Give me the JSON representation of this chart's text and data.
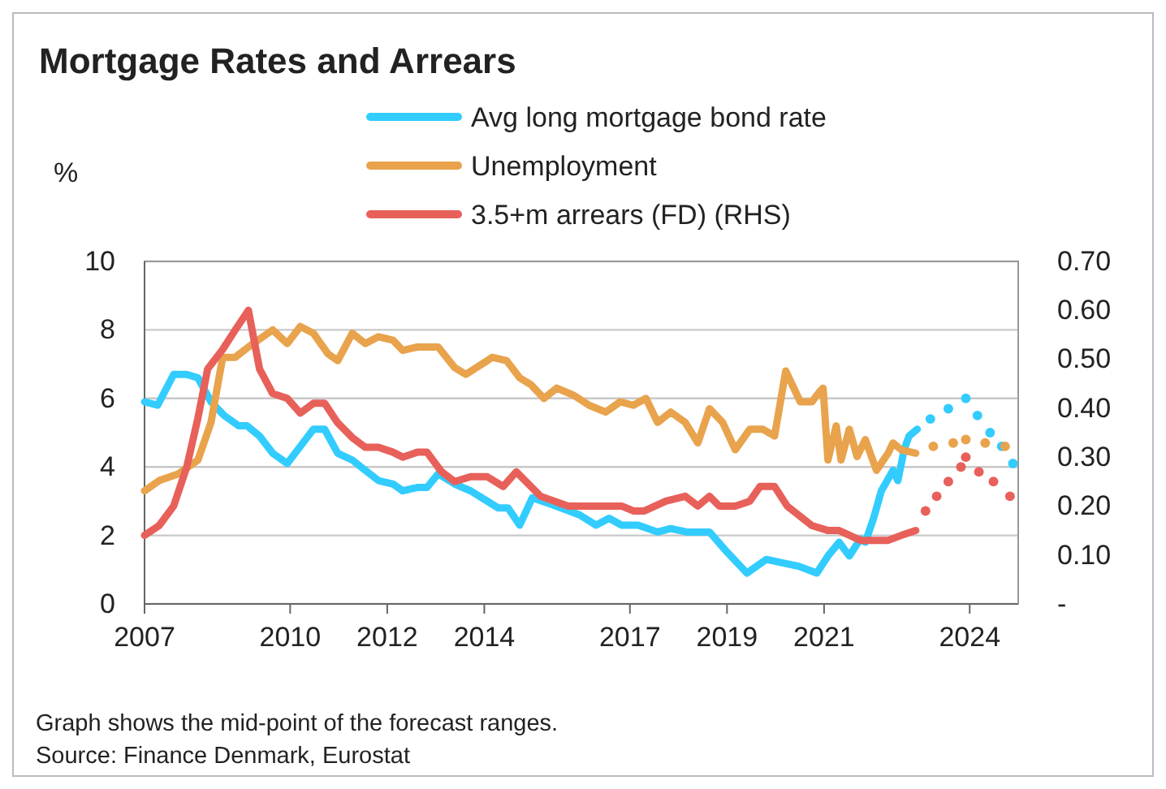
{
  "chart_data": {
    "type": "line",
    "title": "Mortgage Rates and Arrears",
    "ylabel": "%",
    "xlim": [
      2007,
      2025
    ],
    "xticks": [
      2007,
      2010,
      2012,
      2014,
      2017,
      2019,
      2021,
      2024
    ],
    "ylim": [
      0,
      10
    ],
    "yticks": [
      0,
      2,
      4,
      6,
      8,
      10
    ],
    "y2lim": [
      0,
      0.7
    ],
    "y2ticks": [
      {
        "value": 0,
        "label": "-"
      },
      {
        "value": 0.1,
        "label": "0.10"
      },
      {
        "value": 0.2,
        "label": "0.20"
      },
      {
        "value": 0.3,
        "label": "0.30"
      },
      {
        "value": 0.4,
        "label": "0.40"
      },
      {
        "value": 0.5,
        "label": "0.50"
      },
      {
        "value": 0.6,
        "label": "0.60"
      },
      {
        "value": 0.7,
        "label": "0.70"
      }
    ],
    "grid": "y",
    "legend": "top",
    "series": [
      {
        "name": "Avg long mortgage bond rate",
        "color": "#33ccff",
        "line_style": "solid",
        "x": [
          2007.0,
          2007.27,
          2007.6,
          2007.87,
          2008.1,
          2008.37,
          2008.64,
          2008.94,
          2009.11,
          2009.37,
          2009.64,
          2009.94,
          2010.21,
          2010.48,
          2010.71,
          2010.98,
          2011.28,
          2011.55,
          2011.82,
          2012.12,
          2012.32,
          2012.62,
          2012.82,
          2013.05,
          2013.39,
          2013.72,
          2014.06,
          2014.29,
          2014.49,
          2014.73,
          2014.99,
          2015.39,
          2015.96,
          2016.3,
          2016.57,
          2016.83,
          2017.17,
          2017.57,
          2017.84,
          2018.17,
          2018.64,
          2019.01,
          2019.41,
          2019.81,
          2020.14,
          2020.48,
          2020.85,
          2021.08,
          2021.31,
          2021.52,
          2021.75,
          2021.85,
          2022.02,
          2022.18,
          2022.42,
          2022.52,
          2022.65,
          2022.75,
          2022.92
        ],
        "values": [
          5.9,
          5.8,
          6.7,
          6.7,
          6.6,
          5.9,
          5.5,
          5.2,
          5.2,
          4.9,
          4.4,
          4.1,
          4.6,
          5.1,
          5.1,
          4.4,
          4.2,
          3.9,
          3.6,
          3.5,
          3.3,
          3.4,
          3.4,
          3.8,
          3.5,
          3.3,
          3.0,
          2.8,
          2.8,
          2.3,
          3.1,
          2.9,
          2.6,
          2.3,
          2.5,
          2.3,
          2.3,
          2.1,
          2.2,
          2.1,
          2.1,
          1.5,
          0.9,
          1.3,
          1.2,
          1.1,
          0.9,
          1.4,
          1.8,
          1.4,
          1.9,
          1.8,
          2.5,
          3.3,
          3.9,
          3.6,
          4.5,
          4.9,
          5.1
        ]
      },
      {
        "color": "#33ccff",
        "type": "scatter",
        "marker": "circle",
        "x": [
          2023.19,
          2023.56,
          2023.92,
          2024.16,
          2024.42,
          2024.66,
          2024.89
        ],
        "values": [
          5.4,
          5.7,
          6.0,
          5.5,
          5.0,
          4.6,
          4.1
        ]
      },
      {
        "name": "Unemployment",
        "color": "#e8a34c",
        "line_style": "solid",
        "x": [
          2007.0,
          2007.3,
          2007.7,
          2008.1,
          2008.37,
          2008.61,
          2008.87,
          2009.14,
          2009.44,
          2009.64,
          2009.94,
          2010.21,
          2010.48,
          2010.78,
          2010.98,
          2011.28,
          2011.55,
          2011.82,
          2012.12,
          2012.32,
          2012.62,
          2013.05,
          2013.39,
          2013.62,
          2014.06,
          2014.16,
          2014.46,
          2014.73,
          2014.96,
          2015.23,
          2015.49,
          2015.83,
          2016.16,
          2016.5,
          2016.8,
          2017.07,
          2017.33,
          2017.57,
          2017.84,
          2018.14,
          2018.4,
          2018.64,
          2018.91,
          2019.17,
          2019.47,
          2019.74,
          2019.98,
          2020.21,
          2020.51,
          2020.75,
          2020.91,
          2020.98,
          2021.08,
          2021.25,
          2021.35,
          2021.52,
          2021.68,
          2021.85,
          2022.08,
          2022.32,
          2022.42,
          2022.59,
          2022.89
        ],
        "values": [
          3.3,
          3.6,
          3.8,
          4.2,
          5.3,
          7.2,
          7.2,
          7.5,
          7.8,
          8.0,
          7.6,
          8.1,
          7.9,
          7.3,
          7.1,
          7.9,
          7.6,
          7.8,
          7.7,
          7.4,
          7.5,
          7.5,
          6.9,
          6.7,
          7.1,
          7.2,
          7.1,
          6.6,
          6.4,
          6.0,
          6.3,
          6.1,
          5.8,
          5.6,
          5.9,
          5.8,
          6.0,
          5.3,
          5.6,
          5.3,
          4.7,
          5.7,
          5.3,
          4.5,
          5.1,
          5.1,
          4.9,
          6.8,
          5.9,
          5.9,
          6.2,
          6.3,
          4.2,
          5.2,
          4.2,
          5.1,
          4.3,
          4.8,
          3.9,
          4.4,
          4.7,
          4.5,
          4.4
        ]
      },
      {
        "color": "#e8a34c",
        "type": "scatter",
        "marker": "circle",
        "x": [
          2023.25,
          2023.66,
          2023.92,
          2024.32,
          2024.73
        ],
        "values": [
          4.6,
          4.7,
          4.8,
          4.7,
          4.6
        ]
      },
      {
        "name": "3.5+m arrears (FD) (RHS)",
        "color": "#e8605a",
        "line_style": "solid",
        "axis": "y2",
        "x": [
          2007.0,
          2007.3,
          2007.6,
          2007.87,
          2008.1,
          2008.3,
          2008.61,
          2008.87,
          2009.14,
          2009.37,
          2009.64,
          2009.94,
          2010.21,
          2010.48,
          2010.71,
          2010.98,
          2011.28,
          2011.55,
          2011.82,
          2012.12,
          2012.32,
          2012.62,
          2012.82,
          2013.12,
          2013.39,
          2013.72,
          2014.06,
          2014.39,
          2014.66,
          2015.16,
          2015.73,
          2016.06,
          2016.83,
          2017.07,
          2017.3,
          2017.74,
          2018.14,
          2018.4,
          2018.64,
          2018.84,
          2019.17,
          2019.47,
          2019.68,
          2019.98,
          2020.24,
          2020.75,
          2021.08,
          2021.31,
          2021.75,
          2022.32,
          2022.59,
          2022.89
        ],
        "values": [
          0.14,
          0.16,
          0.2,
          0.28,
          0.38,
          0.48,
          0.52,
          0.56,
          0.6,
          0.48,
          0.43,
          0.42,
          0.39,
          0.41,
          0.41,
          0.37,
          0.34,
          0.32,
          0.32,
          0.31,
          0.3,
          0.31,
          0.31,
          0.27,
          0.25,
          0.26,
          0.26,
          0.24,
          0.27,
          0.22,
          0.2,
          0.2,
          0.2,
          0.19,
          0.19,
          0.21,
          0.22,
          0.2,
          0.22,
          0.2,
          0.2,
          0.21,
          0.24,
          0.24,
          0.2,
          0.16,
          0.15,
          0.15,
          0.13,
          0.13,
          0.14,
          0.15
        ]
      },
      {
        "color": "#e8605a",
        "type": "scatter",
        "marker": "circle",
        "axis": "y2",
        "x": [
          2023.09,
          2023.32,
          2023.56,
          2023.82,
          2023.92,
          2024.19,
          2024.49,
          2024.83
        ],
        "values": [
          0.19,
          0.22,
          0.25,
          0.28,
          0.3,
          0.27,
          0.25,
          0.22
        ]
      }
    ],
    "annotations": [
      "Graph shows the mid-point of the forecast ranges.",
      "Source: Finance Denmark, Eurostat"
    ]
  }
}
